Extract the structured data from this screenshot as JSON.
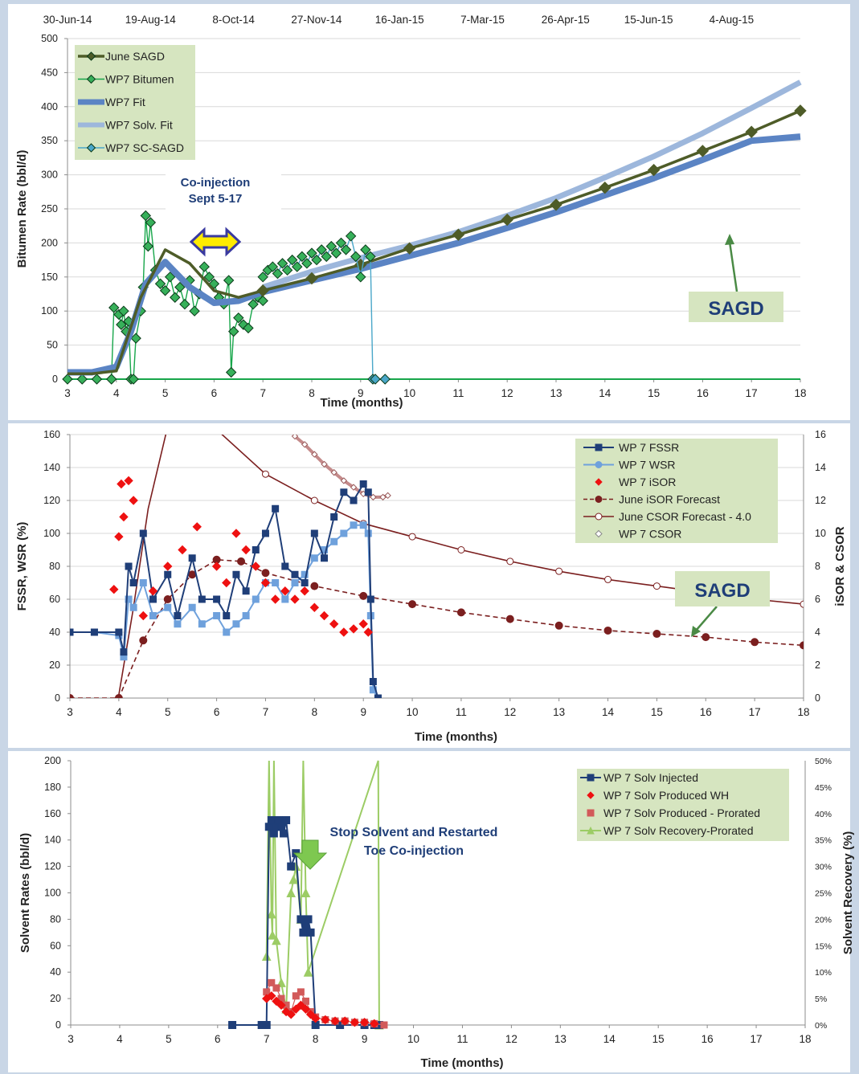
{
  "chart_data": [
    {
      "type": "line",
      "xlabel": "Time (months)",
      "ylabel": "Bitumen Rate (bbl/d)",
      "ylim": [
        0,
        500
      ],
      "yticks": [
        0,
        50,
        100,
        150,
        200,
        250,
        300,
        350,
        400,
        450,
        500
      ],
      "xlim": [
        3,
        18
      ],
      "xticks": [
        3,
        4,
        5,
        6,
        7,
        8,
        9,
        10,
        11,
        12,
        13,
        14,
        15,
        16,
        17,
        18
      ],
      "top_axis_labels": [
        "30-Jun-14",
        "19-Aug-14",
        "8-Oct-14",
        "27-Nov-14",
        "16-Jan-15",
        "7-Mar-15",
        "26-Apr-15",
        "15-Jun-15",
        "4-Aug-15"
      ],
      "grid": true,
      "legend_position": "top-left",
      "colors": {
        "june_sagd": "#4e5c28",
        "wp7_bitumen": "#17a64a",
        "wp7_fit": "#5b84c4",
        "solv_fit": "#9db7dc",
        "sc_sagd": "#4aa7c9",
        "bitumen_marker": "#37b05a",
        "annotation_bg": "#d6e5c0"
      },
      "series": [
        {
          "name": "June SAGD",
          "x": [
            3,
            3.5,
            4,
            4.5,
            5,
            5.5,
            6,
            6.5,
            7,
            8,
            9,
            10,
            11,
            12,
            13,
            14,
            15,
            16,
            17,
            18
          ],
          "y": [
            8,
            8,
            12,
            120,
            190,
            170,
            130,
            120,
            130,
            148,
            168,
            192,
            212,
            234,
            256,
            281,
            307,
            335,
            363,
            394
          ]
        },
        {
          "name": "WP7 Bitumen",
          "x": [
            3,
            3.3,
            3.6,
            3.9,
            3.95,
            4.05,
            4.1,
            4.15,
            4.2,
            4.25,
            4.3,
            4.35,
            4.4,
            4.5,
            4.55,
            4.6,
            4.65,
            4.7,
            4.8,
            4.9,
            5.0,
            5.1,
            5.2,
            5.3,
            5.4,
            5.5,
            5.6,
            5.7,
            5.8,
            5.9,
            6.0,
            6.1,
            6.2,
            6.3,
            6.35,
            6.4,
            6.5,
            6.6,
            6.7,
            6.8,
            6.9,
            7.0
          ],
          "y": [
            0,
            0,
            0,
            0,
            105,
            95,
            80,
            100,
            70,
            85,
            0,
            0,
            60,
            100,
            135,
            240,
            195,
            230,
            160,
            140,
            130,
            150,
            120,
            135,
            110,
            145,
            100,
            125,
            165,
            150,
            140,
            120,
            110,
            145,
            10,
            70,
            90,
            80,
            75,
            110,
            120,
            115
          ]
        },
        {
          "name": "WP7 Fit",
          "x": [
            3,
            3.5,
            4,
            4.3,
            4.6,
            5,
            5.5,
            6,
            6.5,
            7,
            8,
            9,
            10,
            11,
            12,
            13,
            14,
            15,
            16,
            17,
            18
          ],
          "y": [
            10,
            10,
            18,
            70,
            140,
            172,
            135,
            112,
            115,
            128,
            145,
            162,
            181,
            200,
            222,
            245,
            270,
            295,
            322,
            350,
            356
          ]
        },
        {
          "name": "WP7 Solv. Fit",
          "x": [
            7,
            8,
            9,
            10,
            11,
            12,
            13,
            14,
            15,
            16,
            17,
            18
          ],
          "y": [
            135,
            158,
            178,
            196,
            216,
            240,
            266,
            296,
            327,
            361,
            398,
            436
          ]
        },
        {
          "name": "WP7 SC-SAGD",
          "x": [
            7.0,
            7.1,
            7.2,
            7.3,
            7.4,
            7.5,
            7.6,
            7.7,
            7.8,
            7.9,
            8.0,
            8.1,
            8.2,
            8.3,
            8.4,
            8.5,
            8.6,
            8.7,
            8.8,
            8.9,
            9.0,
            9.1,
            9.2,
            9.25,
            9.3,
            9.5
          ],
          "y": [
            150,
            160,
            165,
            155,
            170,
            160,
            175,
            165,
            180,
            170,
            185,
            175,
            190,
            180,
            195,
            185,
            200,
            190,
            210,
            180,
            150,
            190,
            180,
            0,
            0,
            0
          ]
        }
      ],
      "annotations": [
        {
          "text_lines": [
            "Co-injection",
            "Sept 5-17"
          ]
        },
        {
          "text": "SAGD"
        }
      ]
    },
    {
      "type": "line",
      "xlabel": "Time (months)",
      "ylabel": "FSSR, WSR (%)",
      "ylabel2": "iSOR & CSOR",
      "ylim": [
        0,
        160
      ],
      "ylim2": [
        0,
        16
      ],
      "yticks": [
        0,
        20,
        40,
        60,
        80,
        100,
        120,
        140,
        160
      ],
      "yticks2": [
        0,
        2,
        4,
        6,
        8,
        10,
        12,
        14,
        16
      ],
      "xlim": [
        3,
        18
      ],
      "xticks": [
        3,
        4,
        5,
        6,
        7,
        8,
        9,
        10,
        11,
        12,
        13,
        14,
        15,
        16,
        17,
        18
      ],
      "grid": true,
      "legend_position": "top-right",
      "colors": {
        "fssr": "#1f3e78",
        "wsr": "#6fa1dc",
        "isor": "#ee1111",
        "forecast": "#7b1f1f"
      },
      "series": [
        {
          "name": "WP 7 FSSR",
          "axis": "left",
          "x": [
            3,
            3.5,
            4,
            4.1,
            4.2,
            4.3,
            4.5,
            4.7,
            5,
            5.2,
            5.5,
            5.7,
            6,
            6.2,
            6.4,
            6.6,
            6.8,
            7,
            7.2,
            7.4,
            7.6,
            7.8,
            8,
            8.2,
            8.4,
            8.6,
            8.8,
            9,
            9.1,
            9.15,
            9.2,
            9.3
          ],
          "y": [
            40,
            40,
            40,
            28,
            80,
            70,
            100,
            60,
            75,
            50,
            85,
            60,
            60,
            50,
            75,
            65,
            90,
            100,
            115,
            80,
            75,
            70,
            100,
            85,
            110,
            125,
            120,
            130,
            125,
            60,
            10,
            0
          ]
        },
        {
          "name": "WP 7 WSR",
          "axis": "left",
          "x": [
            3,
            3.5,
            4,
            4.1,
            4.2,
            4.3,
            4.5,
            4.7,
            5,
            5.2,
            5.5,
            5.7,
            6,
            6.2,
            6.4,
            6.6,
            6.8,
            7,
            7.2,
            7.4,
            7.6,
            7.8,
            8,
            8.2,
            8.4,
            8.6,
            8.8,
            9,
            9.1,
            9.15,
            9.2,
            9.3
          ],
          "y": [
            40,
            40,
            38,
            25,
            60,
            55,
            70,
            50,
            55,
            45,
            55,
            45,
            50,
            40,
            45,
            50,
            60,
            70,
            70,
            60,
            70,
            75,
            85,
            90,
            95,
            100,
            105,
            105,
            100,
            50,
            5,
            0
          ]
        },
        {
          "name": "WP 7 iSOR",
          "axis": "right",
          "x": [
            3.9,
            4.0,
            4.05,
            4.1,
            4.2,
            4.3,
            4.5,
            4.7,
            5,
            5.3,
            5.6,
            6,
            6.2,
            6.4,
            6.6,
            6.8,
            7,
            7.2,
            7.4,
            7.6,
            7.8,
            8,
            8.2,
            8.4,
            8.6,
            8.8,
            9,
            9.1
          ],
          "y": [
            6.6,
            9.8,
            13.0,
            11.0,
            13.2,
            12.0,
            5.0,
            6.5,
            8.0,
            9.0,
            10.4,
            8.0,
            7.0,
            10.0,
            9.0,
            8.0,
            7.0,
            6.0,
            6.5,
            6.0,
            6.5,
            5.5,
            5.0,
            4.5,
            4.0,
            4.2,
            4.5,
            4.0
          ]
        },
        {
          "name": "June iSOR Forecast",
          "axis": "right",
          "x": [
            3,
            4,
            4.5,
            5,
            5.5,
            6,
            6.5,
            7,
            8,
            9,
            10,
            11,
            12,
            13,
            14,
            15,
            16,
            17,
            18
          ],
          "y": [
            0,
            0,
            3.5,
            6.0,
            7.5,
            8.4,
            8.3,
            7.6,
            6.8,
            6.2,
            5.7,
            5.2,
            4.8,
            4.4,
            4.1,
            3.9,
            3.7,
            3.4,
            3.2
          ]
        },
        {
          "name": "June CSOR Forecast - 4.0",
          "axis": "right",
          "x": [
            4.0,
            4.3,
            4.6,
            5.0,
            6.0,
            7.0,
            8.0,
            9.0,
            10,
            11,
            12,
            13,
            14,
            15,
            16,
            17,
            18
          ],
          "y": [
            0.2,
            5.5,
            11.5,
            16.5,
            16.3,
            13.6,
            12.0,
            10.6,
            9.8,
            9.0,
            8.3,
            7.7,
            7.2,
            6.8,
            6.4,
            6.0,
            5.7
          ]
        },
        {
          "name": "WP 7 CSOR",
          "axis": "right",
          "x": [
            7.6,
            7.8,
            8.0,
            8.2,
            8.4,
            8.6,
            8.8,
            9.0,
            9.2,
            9.4,
            9.5
          ],
          "y": [
            15.9,
            15.4,
            14.8,
            14.2,
            13.7,
            13.2,
            12.8,
            12.4,
            12.2,
            12.2,
            12.3
          ]
        }
      ],
      "annotations": [
        {
          "text": "SAGD"
        }
      ]
    },
    {
      "type": "line",
      "xlabel": "Time (months)",
      "ylabel": "Solvent Rates (bbl/d)",
      "ylabel2": "Solvent Recovery (%)",
      "ylim": [
        0,
        200
      ],
      "ylim2": [
        0,
        50
      ],
      "yticks": [
        0,
        20,
        40,
        60,
        80,
        100,
        120,
        140,
        160,
        180,
        200
      ],
      "yticks2": [
        "0%",
        "5%",
        "10%",
        "15%",
        "20%",
        "25%",
        "30%",
        "35%",
        "40%",
        "45%",
        "50%"
      ],
      "xlim": [
        3,
        18
      ],
      "xticks": [
        3,
        4,
        5,
        6,
        7,
        8,
        9,
        10,
        11,
        12,
        13,
        14,
        15,
        16,
        17,
        18
      ],
      "grid": false,
      "legend_position": "top-right",
      "colors": {
        "injected": "#1f3e78",
        "produced_wh": "#ee1111",
        "prorated": "#d25a5a",
        "recovery": "#9ccc65"
      },
      "series": [
        {
          "name": "WP 7 Solv Injected",
          "x": [
            6.3,
            6.9,
            7.0,
            7.05,
            7.1,
            7.15,
            7.2,
            7.25,
            7.3,
            7.35,
            7.4,
            7.5,
            7.6,
            7.7,
            7.75,
            7.8,
            7.85,
            7.9,
            8.0,
            8.5,
            9.0,
            9.2,
            9.3
          ],
          "y": [
            0,
            0,
            0,
            150,
            155,
            145,
            150,
            155,
            150,
            145,
            155,
            120,
            130,
            80,
            70,
            75,
            80,
            70,
            0,
            0,
            0,
            0,
            0
          ]
        },
        {
          "name": "WP 7 Solv Produced WH",
          "x": [
            7.0,
            7.1,
            7.2,
            7.3,
            7.4,
            7.5,
            7.6,
            7.7,
            7.8,
            7.9,
            8.0,
            8.2,
            8.4,
            8.6,
            8.8,
            9.0,
            9.2
          ],
          "y": [
            20,
            22,
            18,
            15,
            10,
            8,
            12,
            15,
            12,
            8,
            5,
            4,
            3,
            3,
            2,
            2,
            1
          ]
        },
        {
          "name": "WP 7 Solv Produced - Prorated",
          "x": [
            7.0,
            7.1,
            7.2,
            7.3,
            7.4,
            7.5,
            7.6,
            7.7,
            7.8,
            7.9,
            8.0,
            8.2,
            8.4,
            8.6,
            8.8,
            9.0,
            9.2,
            9.4
          ],
          "y": [
            25,
            32,
            28,
            20,
            15,
            10,
            22,
            25,
            18,
            10,
            6,
            4,
            3,
            3,
            2,
            2,
            1,
            0
          ]
        },
        {
          "name": "WP 7 Solv Recovery-Prorated",
          "axis": "right",
          "x": [
            7.0,
            7.05,
            7.1,
            7.12,
            7.15,
            7.2,
            7.3,
            7.4,
            7.5,
            7.55,
            7.6,
            7.7,
            7.75,
            7.8,
            7.85,
            9.28,
            9.3
          ],
          "y": [
            13.0,
            50.0,
            21.0,
            17.0,
            50.0,
            16.0,
            8.0,
            3.0,
            25.0,
            27.5,
            30.0,
            20.0,
            50.0,
            25.0,
            10.0,
            50.0,
            0
          ]
        }
      ],
      "annotations": [
        {
          "text_lines": [
            "Stop Solvent and Restarted",
            "Toe Co-injection"
          ]
        }
      ]
    }
  ]
}
